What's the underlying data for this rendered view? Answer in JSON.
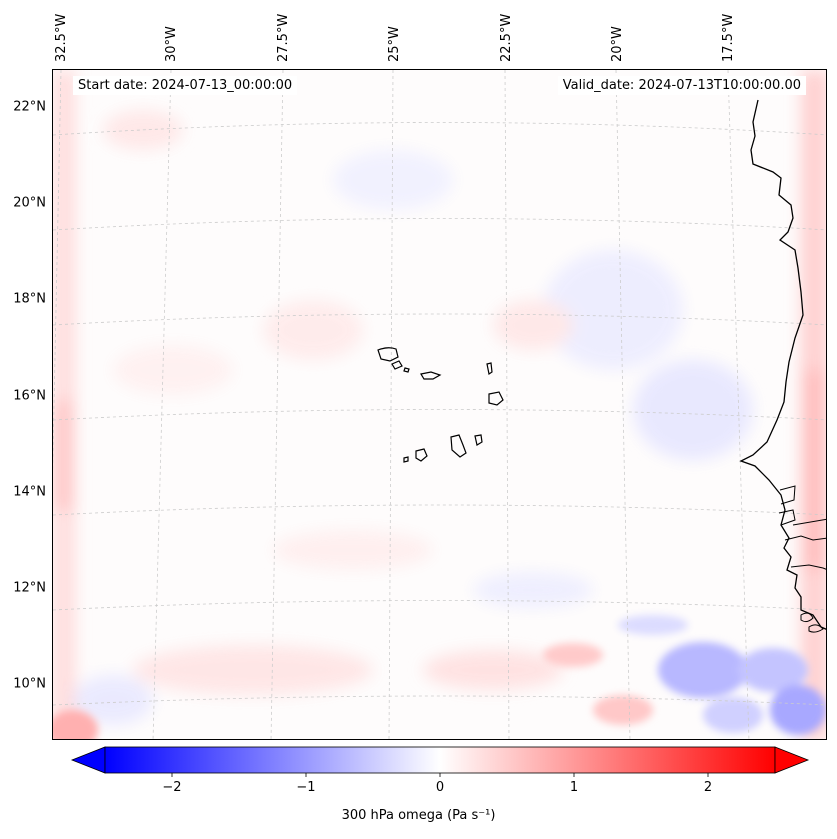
{
  "map": {
    "start_date": "Start date: 2024-07-13_00:00:00",
    "valid_date": "Valid_date: 2024-07-13T10:00:00.00",
    "lon_labels": [
      "32.5°W",
      "30°W",
      "27.5°W",
      "25°W",
      "22.5°W",
      "20°W",
      "17.5°W"
    ],
    "lat_labels": [
      "22°N",
      "20°N",
      "18°N",
      "16°N",
      "14°N",
      "12°N",
      "10°N"
    ],
    "field": "300 hPa omega",
    "colors": {
      "negative": "#0000ff",
      "zero": "#ffffff",
      "positive": "#ff0000",
      "coast": "#000000"
    }
  },
  "colorbar": {
    "label": "300 hPa omega (Pa s⁻¹)",
    "ticks": [
      "−2",
      "−1",
      "0",
      "1",
      "2"
    ],
    "tick_values": [
      -2,
      -1,
      0,
      1,
      2
    ],
    "range": [
      -2.5,
      2.5
    ]
  }
}
